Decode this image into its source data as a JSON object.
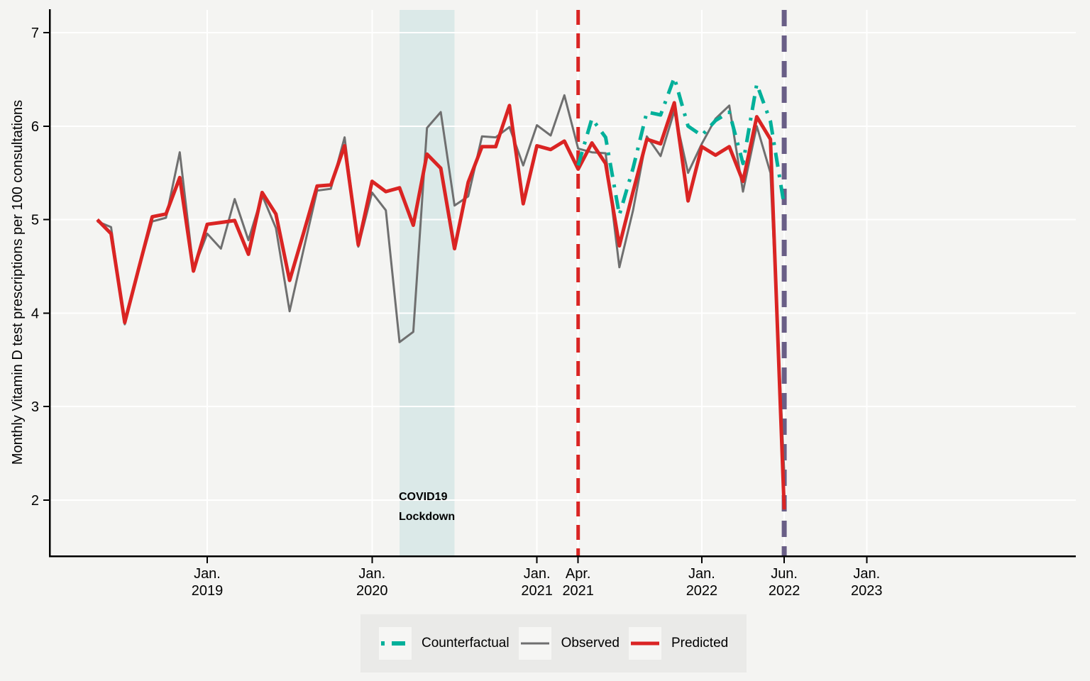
{
  "figure": {
    "ylabel": "Monthly Vitamin D test prescriptions per 100 consultations",
    "lockdown_label_line1": "COVID19",
    "lockdown_label_line2": "Lockdown"
  },
  "legend": {
    "items": [
      {
        "label": "Counterfactual",
        "style": "dash-dot",
        "color": "#00b09a"
      },
      {
        "label": "Observed",
        "style": "solid",
        "color": "#6f6f6f"
      },
      {
        "label": "Predicted",
        "style": "solid",
        "color": "#da2423"
      }
    ]
  },
  "chart_data": {
    "type": "line",
    "title": "",
    "xlabel": "",
    "ylabel": "Monthly Vitamin D test prescriptions per 100 consultations",
    "ylim": [
      1.4,
      7.25
    ],
    "yticks": [
      2,
      3,
      4,
      5,
      6,
      7
    ],
    "grid": "white-on-gray",
    "legend_position": "bottom",
    "x": [
      "May 2018",
      "Jun 2018",
      "Jul 2018",
      "Aug 2018",
      "Sep 2018",
      "Oct 2018",
      "Nov 2018",
      "Dec 2018",
      "Jan 2019",
      "Feb 2019",
      "Mar 2019",
      "Apr 2019",
      "May 2019",
      "Jun 2019",
      "Jul 2019",
      "Aug 2019",
      "Sep 2019",
      "Oct 2019",
      "Nov 2019",
      "Dec 2019",
      "Jan 2020",
      "Feb 2020",
      "Mar 2020",
      "Apr 2020",
      "May 2020",
      "Jun 2020",
      "Jul 2020",
      "Aug 2020",
      "Sep 2020",
      "Oct 2020",
      "Nov 2020",
      "Dec 2020",
      "Jan 2021",
      "Feb 2021",
      "Mar 2021",
      "Apr 2021",
      "May 2021",
      "Jun 2021",
      "Jul 2021",
      "Aug 2021",
      "Sep 2021",
      "Oct 2021",
      "Nov 2021",
      "Dec 2021",
      "Jan 2022",
      "Feb 2022",
      "Mar 2022",
      "Apr 2022",
      "May 2022",
      "Jun 2022",
      "30 Jun 2022 (study end)"
    ],
    "xticks": [
      {
        "line1": "Jan.",
        "line2": "2019",
        "index": 8
      },
      {
        "line1": "Jan.",
        "line2": "2020",
        "index": 20
      },
      {
        "line1": "Jan.",
        "line2": "2021",
        "index": 32
      },
      {
        "line1": "Apr.",
        "line2": "2021",
        "index": 35
      },
      {
        "line1": "Jan.",
        "line2": "2022",
        "index": 44
      },
      {
        "line1": "Jun.",
        "line2": "2022",
        "index": 50
      },
      {
        "line1": "Jan.",
        "line2": "2023",
        "index": 56
      }
    ],
    "series": [
      {
        "name": "Observed",
        "color": "#6f6f6f",
        "width": 3,
        "dash": null,
        "values": [
          4.98,
          4.92,
          3.88,
          4.46,
          4.98,
          5.02,
          5.72,
          4.47,
          4.85,
          4.69,
          5.22,
          4.78,
          5.26,
          4.91,
          4.02,
          4.67,
          5.31,
          5.33,
          5.88,
          4.71,
          5.29,
          5.1,
          3.69,
          3.8,
          5.98,
          6.15,
          5.15,
          5.25,
          5.89,
          5.88,
          5.99,
          5.58,
          6.01,
          5.9,
          6.33,
          5.76,
          5.72,
          5.71,
          4.49,
          5.1,
          5.89,
          5.68,
          6.16,
          5.5,
          5.81,
          6.08,
          6.22,
          5.3,
          6.0,
          5.5,
          2.3
        ]
      },
      {
        "name": "Predicted",
        "color": "#da2423",
        "width": 5,
        "dash": null,
        "values": [
          5.0,
          4.85,
          3.9,
          4.47,
          5.03,
          5.06,
          5.45,
          4.45,
          4.95,
          4.97,
          4.99,
          4.63,
          5.29,
          5.06,
          4.35,
          4.85,
          5.36,
          5.37,
          5.79,
          4.73,
          5.41,
          5.3,
          5.34,
          4.94,
          5.7,
          5.55,
          4.69,
          5.4,
          5.78,
          5.78,
          6.22,
          5.17,
          5.79,
          5.75,
          5.84,
          5.54,
          5.82,
          5.6,
          4.72,
          5.3,
          5.86,
          5.81,
          6.25,
          5.2,
          5.78,
          5.69,
          5.78,
          5.41,
          6.1,
          5.86,
          1.9
        ]
      },
      {
        "name": "Counterfactual",
        "color": "#00b09a",
        "width": 5,
        "dash": "20 11 4 11",
        "values": [
          null,
          null,
          null,
          null,
          null,
          null,
          null,
          null,
          null,
          null,
          null,
          null,
          null,
          null,
          null,
          null,
          null,
          null,
          null,
          null,
          null,
          null,
          null,
          null,
          null,
          null,
          null,
          null,
          null,
          null,
          null,
          null,
          null,
          null,
          null,
          5.58,
          6.08,
          5.88,
          5.05,
          5.55,
          6.15,
          6.12,
          6.52,
          6.0,
          5.9,
          6.06,
          6.15,
          5.6,
          6.45,
          6.05,
          5.15
        ]
      }
    ],
    "vlines": [
      {
        "name": "intervention-start",
        "index": 35,
        "color": "#da2423",
        "width": 5,
        "dash": "21 12"
      },
      {
        "name": "study-end",
        "index": 50,
        "color": "#695e86",
        "width": 7,
        "dash": "23 13"
      }
    ],
    "band": {
      "name": "covid19-lockdown",
      "from_index": 22,
      "to_index": 26,
      "color": "#dbe9e8",
      "label": "COVID19 Lockdown",
      "label_color": "#007d76"
    }
  }
}
